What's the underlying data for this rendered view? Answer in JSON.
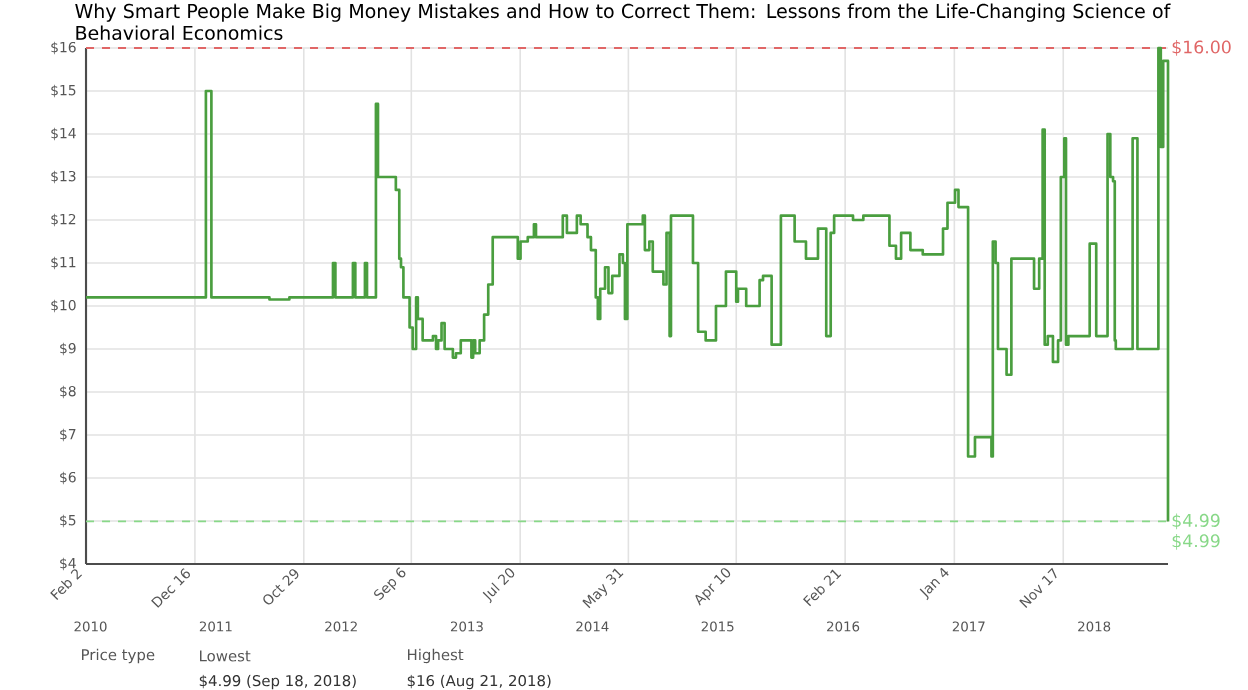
{
  "chart_data": {
    "type": "step",
    "title": "Why Smart People Make Big Money Mistakes and How to Correct Them: Lessons from the Life-Changing Science of Behavioral Economics",
    "x": [
      "2010-02-02",
      "2011-01-17",
      "2011-02-02",
      "2011-07-21",
      "2011-09-17",
      "2012-01-22",
      "2012-01-29",
      "2012-03-20",
      "2012-03-27",
      "2012-04-24",
      "2012-04-30",
      "2012-05-26",
      "2012-06-01",
      "2012-07-23",
      "2012-08-02",
      "2012-08-07",
      "2012-08-14",
      "2012-09-01",
      "2012-09-10",
      "2012-09-20",
      "2012-09-25",
      "2012-10-09",
      "2012-11-08",
      "2012-11-17",
      "2012-11-23",
      "2012-12-03",
      "2012-12-12",
      "2013-01-05",
      "2013-01-14",
      "2013-01-28",
      "2013-02-28",
      "2013-03-05",
      "2013-03-11",
      "2013-03-24",
      "2013-04-06",
      "2013-04-18",
      "2013-05-01",
      "2013-07-13",
      "2013-07-21",
      "2013-08-11",
      "2013-08-29",
      "2013-09-04",
      "2013-11-21",
      "2013-12-03",
      "2014-01-01",
      "2014-01-12",
      "2014-02-01",
      "2014-02-11",
      "2014-02-25",
      "2014-03-03",
      "2014-03-10",
      "2014-03-24",
      "2014-04-03",
      "2014-04-14",
      "2014-05-05",
      "2014-05-15",
      "2014-05-21",
      "2014-05-28",
      "2014-07-12",
      "2014-07-18",
      "2014-07-31",
      "2014-08-10",
      "2014-09-10",
      "2014-09-19",
      "2014-09-28",
      "2014-10-02",
      "2014-12-05",
      "2014-12-20",
      "2015-01-11",
      "2015-02-10",
      "2015-03-11",
      "2015-04-10",
      "2015-04-15",
      "2015-05-09",
      "2015-06-17",
      "2015-06-27",
      "2015-07-22",
      "2015-08-18",
      "2015-09-27",
      "2015-10-30",
      "2015-12-04",
      "2015-12-28",
      "2016-01-10",
      "2016-01-20",
      "2016-03-15",
      "2016-04-14",
      "2016-06-29",
      "2016-07-18",
      "2016-08-02",
      "2016-08-29",
      "2016-10-04",
      "2016-12-02",
      "2016-12-15",
      "2017-01-06",
      "2017-01-16",
      "2017-02-13",
      "2017-03-05",
      "2017-04-22",
      "2017-04-26",
      "2017-05-04",
      "2017-05-11",
      "2017-06-05",
      "2017-06-19",
      "2017-08-24",
      "2017-09-08",
      "2017-09-18",
      "2017-09-24",
      "2017-10-03",
      "2017-10-18",
      "2017-11-02",
      "2017-11-10",
      "2017-11-20",
      "2017-11-25",
      "2017-12-02",
      "2018-02-02",
      "2018-02-21",
      "2018-03-26",
      "2018-04-03",
      "2018-04-11",
      "2018-04-16",
      "2018-04-19",
      "2018-06-07",
      "2018-06-21",
      "2018-08-21",
      "2018-08-28",
      "2018-09-04",
      "2018-09-18"
    ],
    "series": [
      {
        "color": "#4a9e3f",
        "values": [
          10.2,
          15.0,
          10.2,
          10.15,
          10.2,
          11.0,
          10.2,
          11.0,
          10.2,
          11.0,
          10.2,
          14.7,
          13.0,
          12.7,
          11.1,
          10.9,
          10.2,
          9.5,
          9.0,
          10.2,
          9.7,
          9.2,
          9.3,
          9.0,
          9.2,
          9.6,
          9.0,
          8.8,
          8.9,
          9.2,
          8.8,
          9.2,
          8.9,
          9.2,
          9.8,
          10.5,
          11.6,
          11.1,
          11.5,
          11.6,
          11.9,
          11.6,
          12.1,
          11.7,
          12.1,
          11.9,
          11.6,
          11.3,
          10.2,
          9.7,
          10.4,
          10.9,
          10.3,
          10.7,
          11.2,
          11.0,
          9.7,
          11.9,
          12.1,
          11.3,
          11.5,
          10.8,
          10.5,
          11.7,
          9.3,
          12.1,
          11.0,
          9.4,
          9.2,
          10.0,
          10.8,
          10.1,
          10.4,
          10.0,
          10.6,
          10.7,
          9.1,
          12.1,
          11.5,
          11.1,
          11.8,
          9.3,
          11.7,
          12.1,
          12.0,
          12.1,
          11.4,
          11.1,
          11.7,
          11.3,
          11.2,
          11.8,
          12.4,
          12.7,
          12.3,
          6.5,
          6.95,
          6.5,
          11.5,
          11.0,
          9.0,
          8.4,
          11.1,
          10.4,
          11.1,
          14.1,
          9.1,
          9.3,
          8.7,
          9.2,
          13.0,
          13.9,
          9.1,
          9.3,
          11.45,
          9.3,
          14.0,
          13.0,
          12.9,
          9.2,
          9.0,
          13.9,
          9.0,
          16.0,
          13.7,
          15.7,
          4.99
        ]
      }
    ],
    "xlim": [
      "2010-02-02",
      "2018-09-18"
    ],
    "xticks": [
      {
        "value": "2010-02-02",
        "label": "Feb 2"
      },
      {
        "value": "2010-12-16",
        "label": "Dec 16"
      },
      {
        "value": "2011-10-29",
        "label": "Oct 29"
      },
      {
        "value": "2012-09-06",
        "label": "Sep 6"
      },
      {
        "value": "2013-07-20",
        "label": "Jul 20"
      },
      {
        "value": "2014-05-31",
        "label": "May 31"
      },
      {
        "value": "2015-04-10",
        "label": "Apr 10"
      },
      {
        "value": "2016-02-21",
        "label": "Feb 21"
      },
      {
        "value": "2017-01-04",
        "label": "Jan 4"
      },
      {
        "value": "2017-11-17",
        "label": "Nov 17"
      }
    ],
    "x2lim": [
      "2010-02-02",
      "2018-09-18"
    ],
    "x2ticks": [
      {
        "value": "2010-02-15",
        "label": "2010"
      },
      {
        "value": "2011-02-15",
        "label": "2011"
      },
      {
        "value": "2012-02-15",
        "label": "2012"
      },
      {
        "value": "2013-02-15",
        "label": "2013"
      },
      {
        "value": "2014-02-15",
        "label": "2014"
      },
      {
        "value": "2015-02-15",
        "label": "2015"
      },
      {
        "value": "2016-02-15",
        "label": "2016"
      },
      {
        "value": "2017-02-15",
        "label": "2017"
      },
      {
        "value": "2018-02-15",
        "label": "2018"
      }
    ],
    "ylim": [
      4,
      16
    ],
    "yticks": [
      {
        "value": 4,
        "label": "$4"
      },
      {
        "value": 5,
        "label": "$5"
      },
      {
        "value": 6,
        "label": "$6"
      },
      {
        "value": 7,
        "label": "$7"
      },
      {
        "value": 8,
        "label": "$8"
      },
      {
        "value": 9,
        "label": "$9"
      },
      {
        "value": 10,
        "label": "$10"
      },
      {
        "value": 11,
        "label": "$11"
      },
      {
        "value": 12,
        "label": "$12"
      },
      {
        "value": 13,
        "label": "$13"
      },
      {
        "value": 14,
        "label": "$14"
      },
      {
        "value": 15,
        "label": "$15"
      },
      {
        "value": 16,
        "label": "$16"
      }
    ],
    "grid": true,
    "ref_lines": [
      {
        "axis": "y",
        "value": 16,
        "label": "$16.00",
        "color": "#e06666",
        "line_style": "dashed"
      },
      {
        "axis": "y",
        "value": 4.99,
        "label": "$4.99",
        "color": "#88d888",
        "line_style": "dashed"
      }
    ],
    "annotations": [
      "Price type",
      "Lowest",
      "Highest",
      "$4.99 (Sep 18, 2018)",
      "$16 (Aug 21, 2018)",
      {
        "text": "$4.99",
        "x": "2018-09-18",
        "y": 4.99
      }
    ]
  }
}
